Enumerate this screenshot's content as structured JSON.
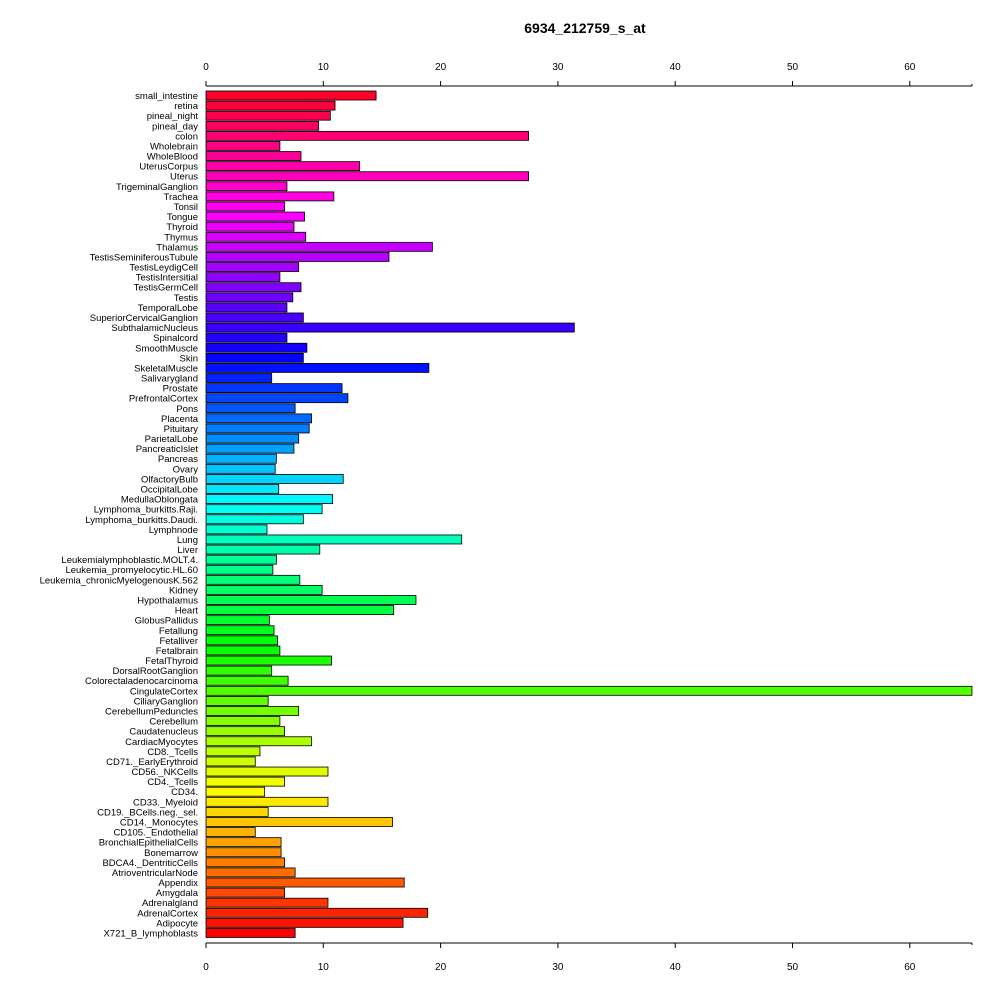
{
  "chart_data": {
    "type": "bar",
    "orientation": "horizontal",
    "title": "6934_212759_s_at",
    "xlabel": "",
    "ylabel": "",
    "xlim": [
      0,
      65.3
    ],
    "xticks": [
      0,
      10,
      20,
      30,
      40,
      50,
      60
    ],
    "grid": false,
    "legend": "none",
    "bar_border_color": "#000000",
    "color_scheme": "rainbow (red → magenta → blue → cyan → green → yellow → orange → red, top to bottom)",
    "categories": [
      "small_intestine",
      "retina",
      "pineal_night",
      "pineal_day",
      "colon",
      "Wholebrain",
      "WholeBlood",
      "UterusCorpus",
      "Uterus",
      "TrigeminalGanglion",
      "Trachea",
      "Tonsil",
      "Tongue",
      "Thyroid",
      "Thymus",
      "Thalamus",
      "TestisSeminiferousTubule",
      "TestisLeydigCell",
      "TestisIntersitial",
      "TestisGermCell",
      "Testis",
      "TemporalLobe",
      "SuperiorCervicalGanglion",
      "SubthalamicNucleus",
      "Spinalcord",
      "SmoothMuscle",
      "Skin",
      "SkeletalMuscle",
      "Salivarygland",
      "Prostate",
      "PrefrontalCortex",
      "Pons",
      "Placenta",
      "Pituitary",
      "ParietalLobe",
      "PancreaticIslet",
      "Pancreas",
      "Ovary",
      "OlfactoryBulb",
      "OccipitalLobe",
      "MedullaOblongata",
      "Lymphoma_burkitts.Raji.",
      "Lymphoma_burkitts.Daudi.",
      "Lymphnode",
      "Lung",
      "Liver",
      "Leukemialymphoblastic.MOLT.4.",
      "Leukemia_promyelocytic.HL.60",
      "Leukemia_chronicMyelogenousK.562",
      "Kidney",
      "Hypothalamus",
      "Heart",
      "GlobusPallidus",
      "Fetallung",
      "Fetalliver",
      "Fetalbrain",
      "FetalThyroid",
      "DorsalRootGanglion",
      "Colorectaladenocarcinoma",
      "CingulateCortex",
      "CiliaryGanglion",
      "CerebellumPeduncles",
      "Cerebellum",
      "Caudatenucleus",
      "CardiacMyocytes",
      "CD8._Tcells",
      "CD71._EarlyErythroid",
      "CD56._NKCells",
      "CD4._Tcells",
      "CD34.",
      "CD33._Myeloid",
      "CD19._BCells.neg._sel.",
      "CD14._Monocytes",
      "CD105._Endothelial",
      "BronchialEpithelialCells",
      "Bonemarrow",
      "BDCA4._DentriticCells",
      "AtrioventricularNode",
      "Appendix",
      "Amygdala",
      "Adrenalgland",
      "AdrenalCortex",
      "Adipocyte",
      "X721_B_lymphoblasts"
    ],
    "values": [
      14.5,
      11.0,
      10.6,
      9.6,
      27.5,
      6.3,
      8.1,
      13.1,
      27.5,
      6.9,
      10.9,
      6.7,
      8.4,
      7.5,
      8.5,
      19.3,
      15.6,
      7.9,
      6.3,
      8.1,
      7.4,
      6.9,
      8.3,
      31.4,
      6.9,
      8.6,
      8.3,
      19.0,
      5.6,
      11.6,
      12.1,
      7.6,
      9.0,
      8.8,
      7.9,
      7.5,
      6.0,
      5.9,
      11.7,
      6.2,
      10.8,
      9.9,
      8.3,
      5.2,
      21.8,
      9.7,
      6.0,
      5.7,
      8.0,
      9.9,
      17.9,
      16.0,
      5.4,
      5.8,
      6.1,
      6.3,
      10.7,
      5.6,
      7.0,
      65.3,
      5.3,
      7.9,
      6.3,
      6.7,
      9.0,
      4.6,
      4.2,
      10.4,
      6.7,
      5.0,
      10.4,
      5.3,
      15.9,
      4.2,
      6.4,
      6.4,
      6.7,
      7.6,
      16.9,
      6.7,
      10.4,
      18.9,
      16.8,
      7.6
    ]
  }
}
